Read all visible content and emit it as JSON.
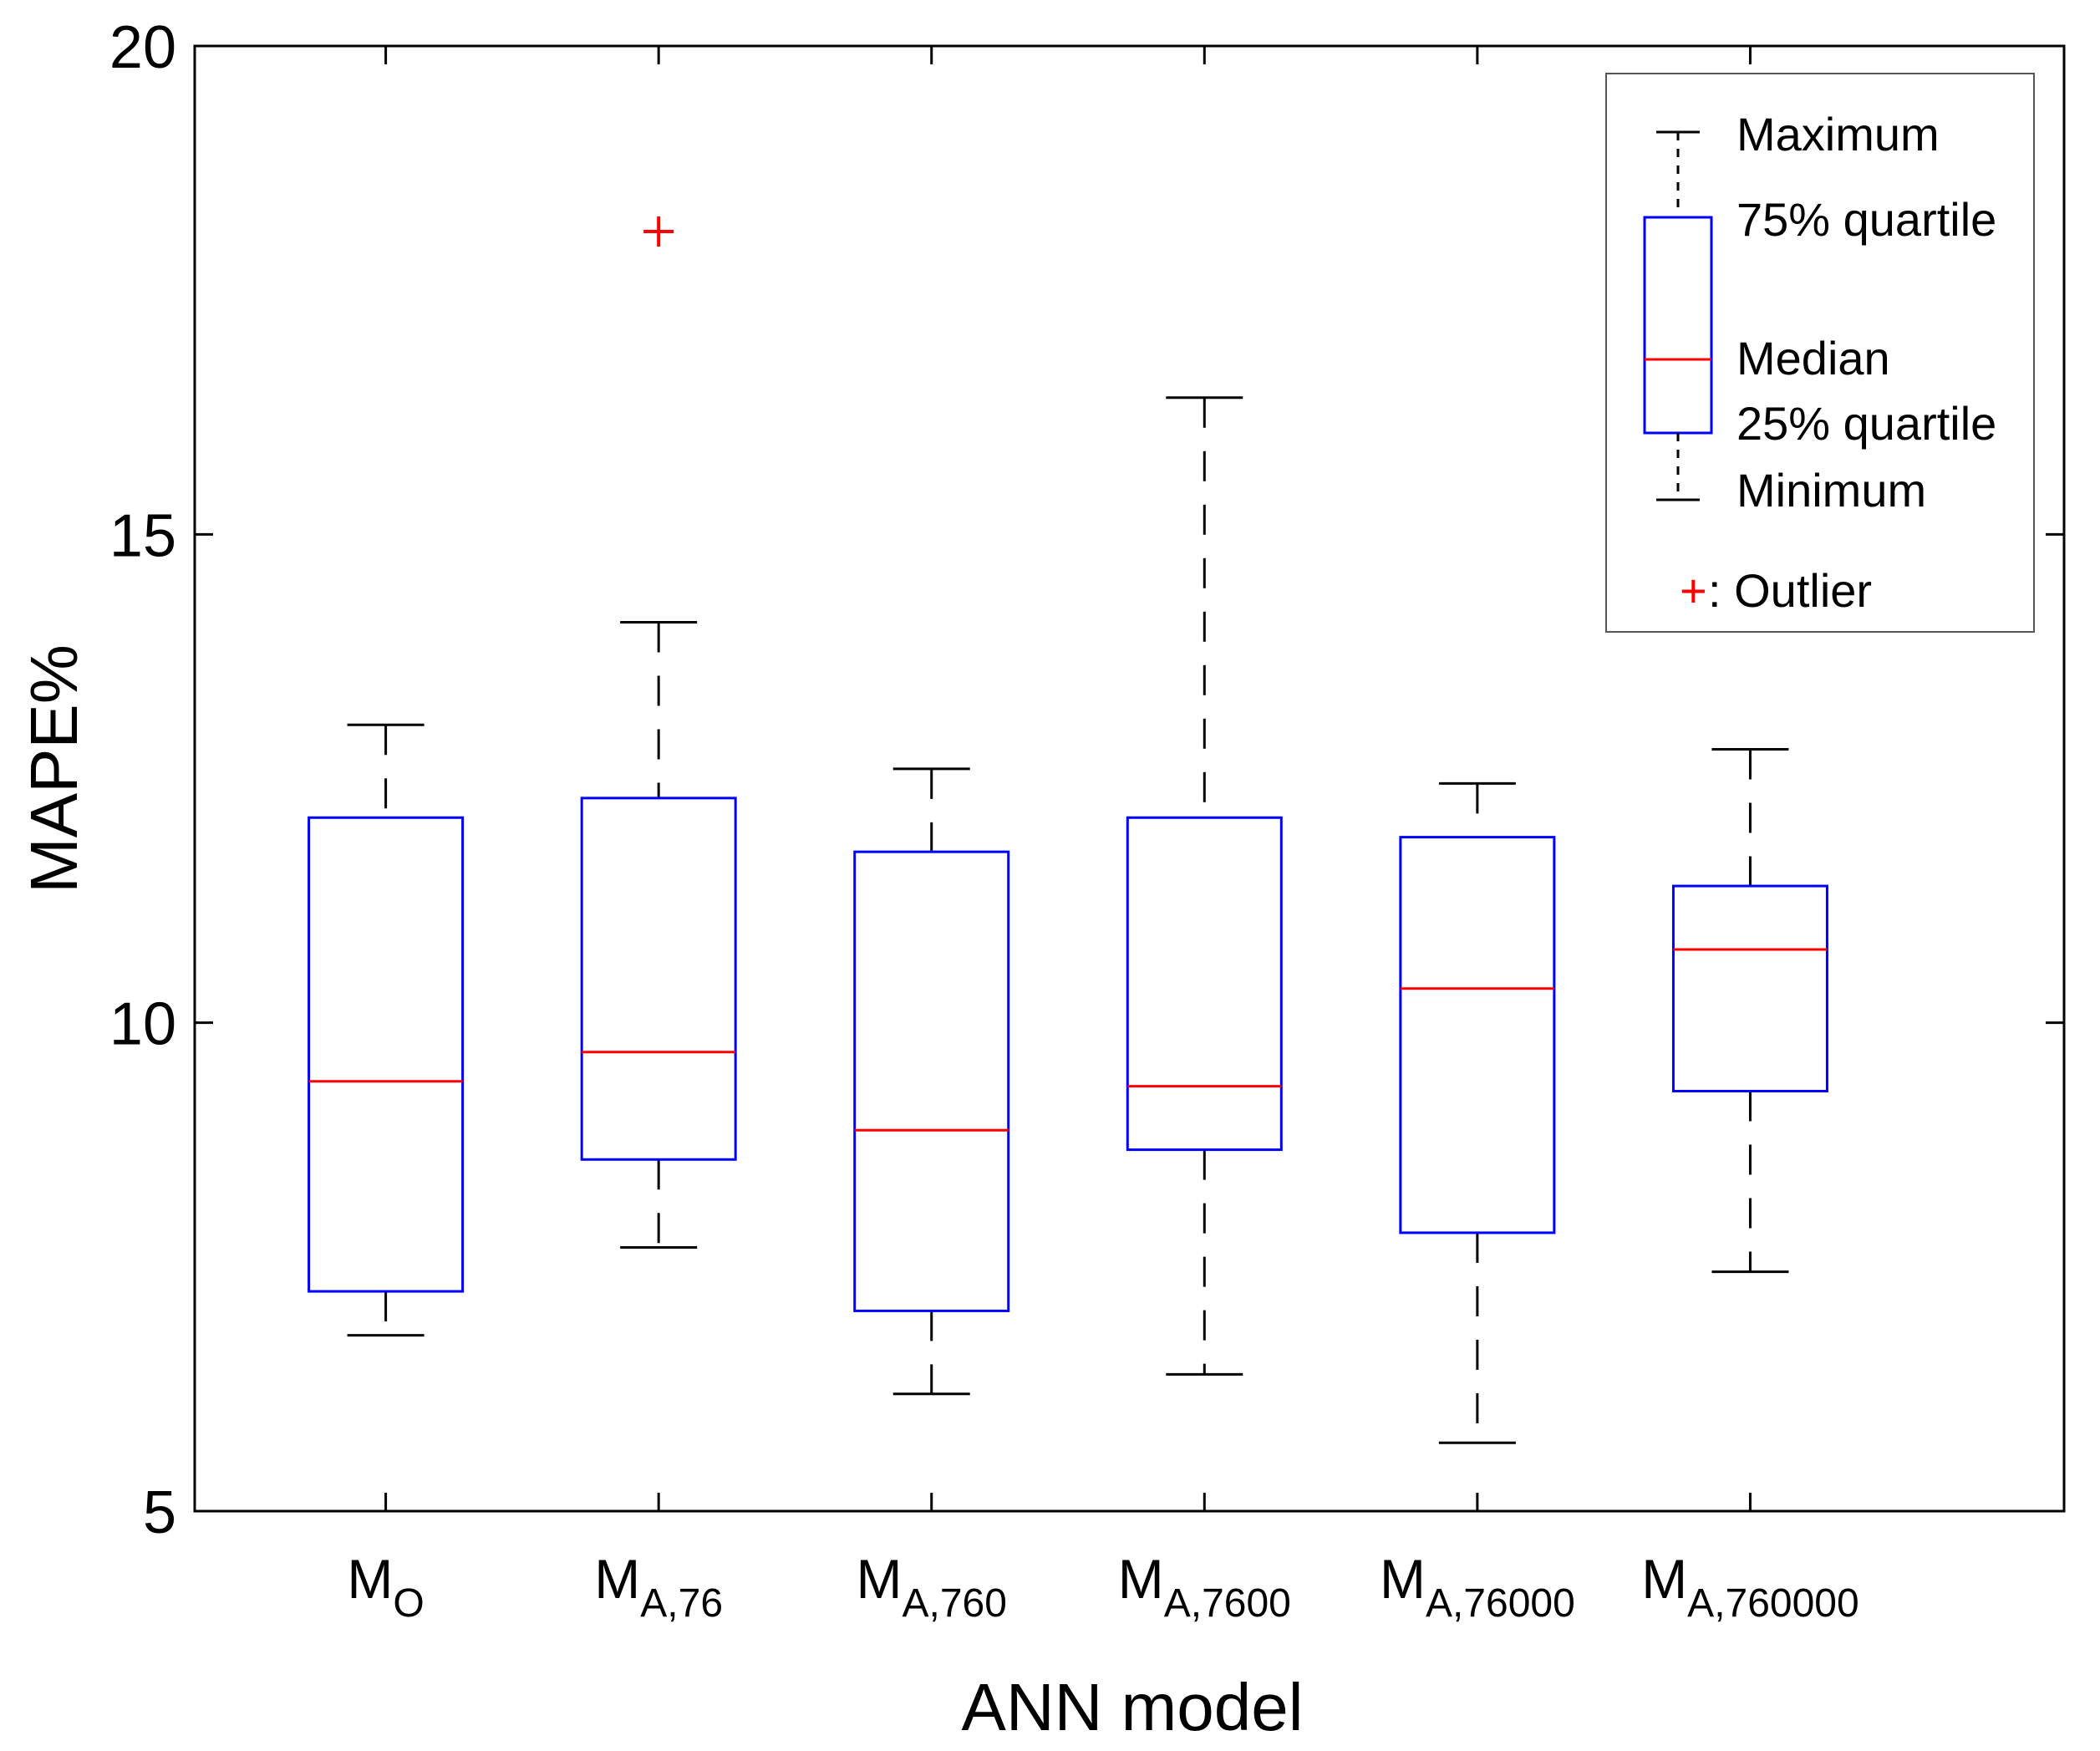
{
  "chart_data": {
    "type": "box",
    "xlabel": "ANN model",
    "ylabel": "MAPE%",
    "ylim": [
      5,
      20
    ],
    "yticks": [
      "5",
      "10",
      "15",
      "20"
    ],
    "categories": [
      {
        "main": "M",
        "sub": "O"
      },
      {
        "main": "M",
        "sub": "A,76"
      },
      {
        "main": "M",
        "sub": "A,760"
      },
      {
        "main": "M",
        "sub": "A,7600"
      },
      {
        "main": "M",
        "sub": "A,76000"
      },
      {
        "main": "M",
        "sub": "A,760000"
      }
    ],
    "boxes": [
      {
        "min": 6.8,
        "q1": 7.25,
        "median": 9.4,
        "q3": 12.1,
        "max": 13.05,
        "outliers": []
      },
      {
        "min": 7.7,
        "q1": 8.6,
        "median": 9.7,
        "q3": 12.3,
        "max": 14.1,
        "outliers": [
          18.1
        ]
      },
      {
        "min": 6.2,
        "q1": 7.05,
        "median": 8.9,
        "q3": 11.75,
        "max": 12.6,
        "outliers": []
      },
      {
        "min": 6.4,
        "q1": 8.7,
        "median": 9.35,
        "q3": 12.1,
        "max": 16.4,
        "outliers": []
      },
      {
        "min": 5.7,
        "q1": 7.85,
        "median": 10.35,
        "q3": 11.9,
        "max": 12.45,
        "outliers": []
      },
      {
        "min": 7.45,
        "q1": 9.3,
        "median": 10.75,
        "q3": 11.4,
        "max": 12.8,
        "outliers": []
      }
    ],
    "colors": {
      "box": "#0000ff",
      "median": "#ff0000",
      "whisker": "#000000",
      "outlier": "#ff0000"
    },
    "legend": {
      "position": "top-right",
      "maximum": "Maximum",
      "q3": "75% quartile",
      "median": "Median",
      "q1": "25% quartile",
      "minimum": "Minimum",
      "outlier_marker": "+",
      "outlier": ": Outlier"
    }
  }
}
